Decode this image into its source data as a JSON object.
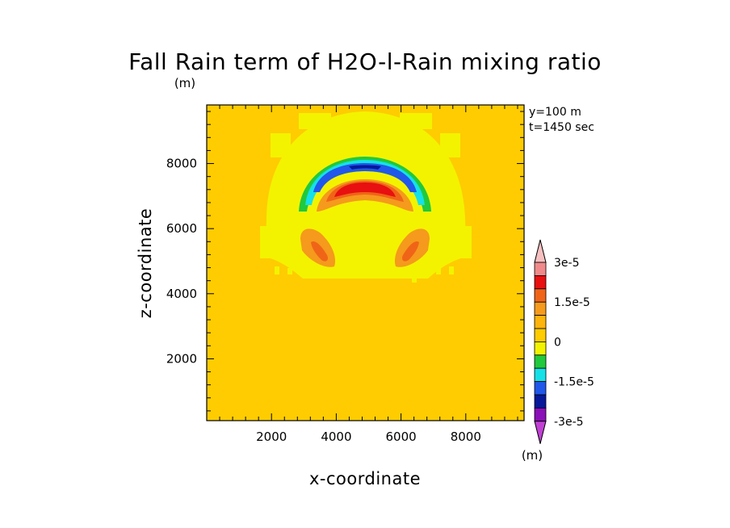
{
  "chart_data": {
    "type": "heatmap",
    "title": "Fall Rain term of H2O-l-Rain mixing ratio",
    "yunits": "(m)",
    "xlabel": "x-coordinate",
    "ylabel": "z-coordinate",
    "info": [
      "y=100  m",
      "t=1450 sec"
    ],
    "xlim": [
      0,
      9800
    ],
    "ylim": [
      100,
      9800
    ],
    "xticks": [
      2000,
      4000,
      6000,
      8000
    ],
    "yticks": [
      2000,
      4000,
      6000,
      8000
    ],
    "background_level": "0 to 5e-6",
    "colorbar": {
      "units": "(m)",
      "tick_labels": [
        "3e-5",
        "1.5e-5",
        "0",
        "-1.5e-5",
        "-3e-5"
      ],
      "levels_top_to_bottom": [
        {
          "range": ">3e-5",
          "color": "#f7c0c0"
        },
        {
          "range": "2.5e-5 to 3e-5",
          "color": "#f08a8a"
        },
        {
          "range": "2e-5 to 2.5e-5",
          "color": "#e81010"
        },
        {
          "range": "1.5e-5 to 2e-5",
          "color": "#f06418"
        },
        {
          "range": "1e-5 to 1.5e-5",
          "color": "#f59a1c"
        },
        {
          "range": "5e-6 to 1e-5",
          "color": "#fdb40c"
        },
        {
          "range": "0 to 5e-6",
          "color": "#fecc00"
        },
        {
          "range": "-5e-6 to 0",
          "color": "#f3f300"
        },
        {
          "range": "-1e-5 to -5e-6",
          "color": "#21c93c"
        },
        {
          "range": "-1.5e-5 to -1e-5",
          "color": "#15e0e8"
        },
        {
          "range": "-2e-5 to -1.5e-5",
          "color": "#2158ea"
        },
        {
          "range": "-2.5e-5 to -2e-5",
          "color": "#07189a"
        },
        {
          "range": "-3e-5 to -2.5e-5",
          "color": "#8a10b8"
        },
        {
          "range": "<-3e-5",
          "color": "#c040d4"
        }
      ]
    }
  }
}
